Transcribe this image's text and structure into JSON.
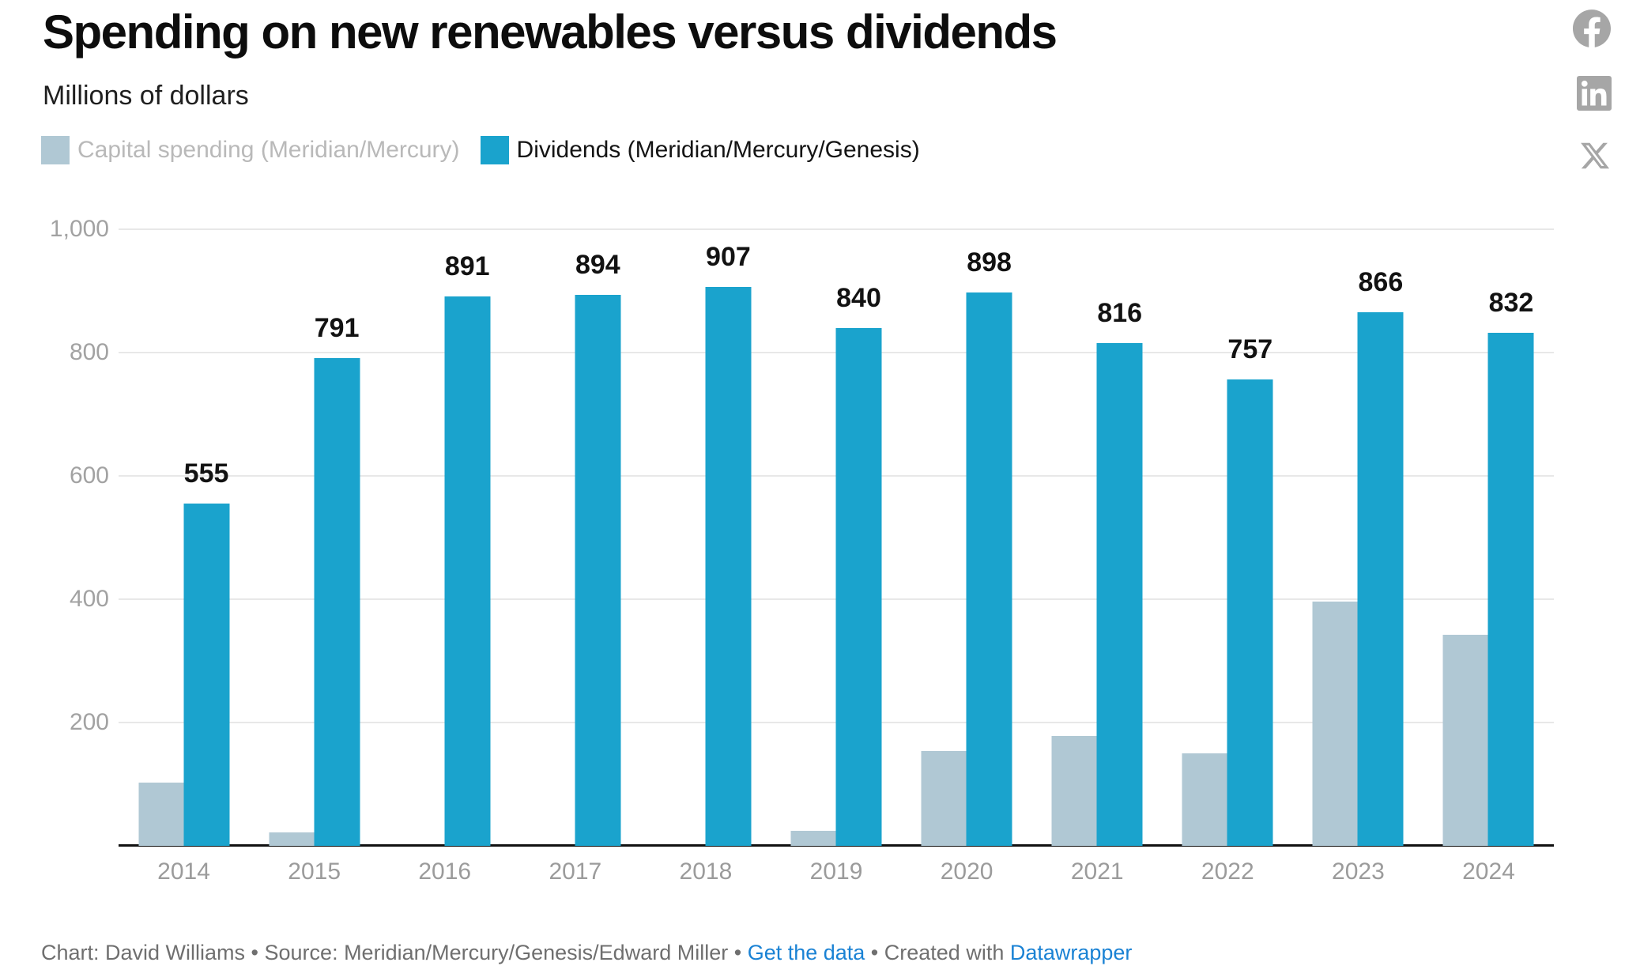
{
  "header": {
    "title": "Spending on new renewables versus dividends",
    "subtitle": "Millions of dollars"
  },
  "legend": {
    "items": [
      {
        "label": "Capital spending (Meridian/Mercury)",
        "swatch_color": "#b0c8d4",
        "text_color": "#b9b9b9"
      },
      {
        "label": "Dividends (Meridian/Mercury/Genesis)",
        "swatch_color": "#1aa3cd",
        "text_color": "#141414"
      }
    ]
  },
  "social": {
    "icon_color": "#a6a6a6",
    "icons": [
      {
        "name": "facebook"
      },
      {
        "name": "linkedin"
      },
      {
        "name": "x"
      }
    ]
  },
  "chart_data": {
    "type": "bar",
    "title": "Spending on new renewables versus dividends",
    "units_label": "Millions of dollars",
    "categories": [
      "2014",
      "2015",
      "2016",
      "2017",
      "2018",
      "2019",
      "2020",
      "2021",
      "2022",
      "2023",
      "2024"
    ],
    "series": [
      {
        "name": "Capital spending (Meridian/Mercury)",
        "color": "#b0c8d4",
        "values": [
          103,
          22,
          0,
          0,
          0,
          24,
          154,
          178,
          150,
          396,
          342
        ],
        "values_estimated_from_gridlines": true,
        "value_labels_shown": false
      },
      {
        "name": "Dividends (Meridian/Mercury/Genesis)",
        "color": "#1aa3cd",
        "values": [
          555,
          791,
          891,
          894,
          907,
          840,
          898,
          816,
          757,
          866,
          832
        ],
        "value_labels_shown": true
      }
    ],
    "ylim": [
      0,
      1000
    ],
    "yticks": [
      {
        "value": 1000,
        "label": "1,000"
      },
      {
        "value": 800,
        "label": "800"
      },
      {
        "value": 600,
        "label": "600"
      },
      {
        "value": 400,
        "label": "400"
      },
      {
        "value": 200,
        "label": "200"
      }
    ],
    "grid": true,
    "legend_position": "top-left",
    "gridline_color": "#e8e8e8",
    "axis_label_color": "#a2a2a2",
    "category_label_color": "#9b9b9b",
    "value_label_color": "#121212"
  },
  "footer": {
    "text_color": "#6f6f6f",
    "link_color": "#1a82d4",
    "parts": [
      {
        "type": "text",
        "text": "Chart: David Williams"
      },
      {
        "type": "sep",
        "text": " • "
      },
      {
        "type": "text",
        "text": "Source: Meridian/Mercury/Genesis/Edward Miller"
      },
      {
        "type": "sep",
        "text": " • "
      },
      {
        "type": "link",
        "text": "Get the data"
      },
      {
        "type": "sep",
        "text": " • "
      },
      {
        "type": "text",
        "text": "Created with "
      },
      {
        "type": "link",
        "text": "Datawrapper"
      }
    ]
  }
}
